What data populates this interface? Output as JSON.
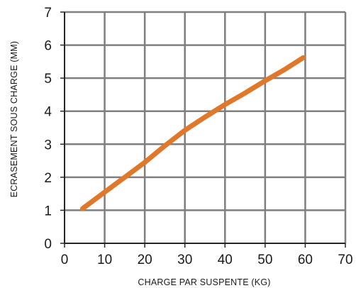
{
  "chart_data": {
    "type": "line",
    "title": "",
    "xlabel": "CHARGE PAR SUSPENTE (KG)",
    "ylabel": "ECRASEMENT SOUS CHARGE (MM)",
    "xlim": [
      0,
      70
    ],
    "ylim": [
      0,
      7
    ],
    "x_ticks": [
      "0",
      "10",
      "20",
      "30",
      "40",
      "50",
      "60",
      "70"
    ],
    "y_ticks": [
      "0",
      "1",
      "2",
      "3",
      "4",
      "5",
      "6",
      "7"
    ],
    "grid": true,
    "legend": "none",
    "series": [
      {
        "color": "#e0782b",
        "points": [
          [
            4.5,
            1.05
          ],
          [
            10,
            1.55
          ],
          [
            15,
            2.0
          ],
          [
            20,
            2.45
          ],
          [
            25,
            2.95
          ],
          [
            30,
            3.42
          ],
          [
            35,
            3.82
          ],
          [
            40,
            4.2
          ],
          [
            45,
            4.55
          ],
          [
            50,
            4.92
          ],
          [
            55,
            5.27
          ],
          [
            59.5,
            5.62
          ]
        ]
      }
    ],
    "colors": {
      "grid": "#7f7f7f",
      "axis": "#262626",
      "line": "#e0782b"
    }
  }
}
